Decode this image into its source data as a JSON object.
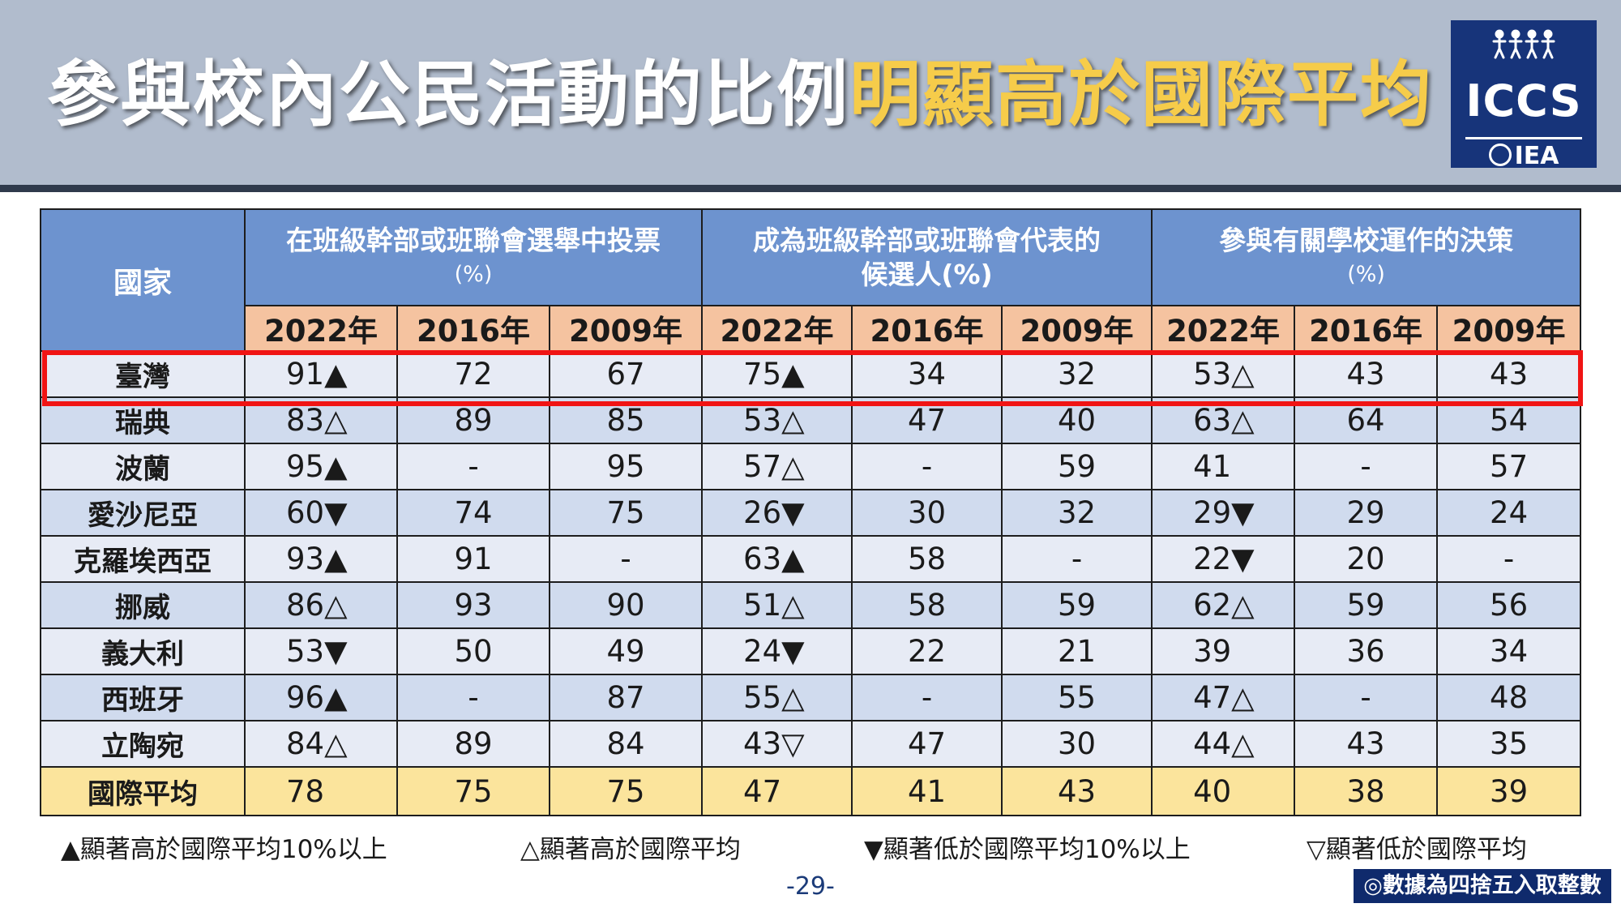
{
  "title": {
    "main": "參與校內公民活動的比例",
    "highlight": "明顯高於國際平均"
  },
  "logo": {
    "name": "ICCS",
    "org": "IEA"
  },
  "table": {
    "country_header": "國家",
    "groups": [
      {
        "line1": "在班級幹部或班聯會選舉中投票",
        "line2": "(%)"
      },
      {
        "line1": "成為班級幹部或班聯會代表的",
        "line2": "候選人(%)"
      },
      {
        "line1": "參與有關學校運作的決策",
        "line2": "(%)"
      }
    ],
    "years": [
      "2022年",
      "2016年",
      "2009年",
      "2022年",
      "2016年",
      "2009年",
      "2022年",
      "2016年",
      "2009年"
    ],
    "rows": [
      {
        "country": "臺灣",
        "cells": [
          "91▲",
          "72",
          "67",
          "75▲",
          "34",
          "32",
          "53△",
          "43",
          "43"
        ]
      },
      {
        "country": "瑞典",
        "cells": [
          "83△",
          "89",
          "85",
          "53△",
          "47",
          "40",
          "63△",
          "64",
          "54"
        ]
      },
      {
        "country": "波蘭",
        "cells": [
          "95▲",
          "-",
          "95",
          "57△",
          "-",
          "59",
          "41",
          "-",
          "57"
        ]
      },
      {
        "country": "愛沙尼亞",
        "cells": [
          "60▼",
          "74",
          "75",
          "26▼",
          "30",
          "32",
          "29▼",
          "29",
          "24"
        ]
      },
      {
        "country": "克羅埃西亞",
        "cells": [
          "93▲",
          "91",
          "-",
          "63▲",
          "58",
          "-",
          "22▼",
          "20",
          "-"
        ]
      },
      {
        "country": "挪威",
        "cells": [
          "86△",
          "93",
          "90",
          "51△",
          "58",
          "59",
          "62△",
          "59",
          "56"
        ]
      },
      {
        "country": "義大利",
        "cells": [
          "53▼",
          "50",
          "49",
          "24▼",
          "22",
          "21",
          "39",
          "36",
          "34"
        ]
      },
      {
        "country": "西班牙",
        "cells": [
          "96▲",
          "-",
          "87",
          "55△",
          "-",
          "55",
          "47△",
          "-",
          "48"
        ]
      },
      {
        "country": "立陶宛",
        "cells": [
          "84△",
          "89",
          "84",
          "43▽",
          "47",
          "30",
          "44△",
          "43",
          "35"
        ]
      }
    ],
    "average": {
      "country": "國際平均",
      "cells": [
        "78",
        "75",
        "75",
        "47",
        "41",
        "43",
        "40",
        "38",
        "39"
      ]
    }
  },
  "legend": [
    "▲顯著高於國際平均10%以上",
    "△顯著高於國際平均",
    "▼顯著低於國際平均10%以上",
    "▽顯著低於國際平均"
  ],
  "page_number": "-29-",
  "note": "◎數據為四捨五入取整數",
  "colors": {
    "header_bg": "#b1bccd",
    "title_highlight": "#f6cc4a",
    "table_header": "#6d93cf",
    "year_row": "#f5c3a0",
    "average_row": "#fbe49c",
    "highlight_box": "#f01414"
  }
}
